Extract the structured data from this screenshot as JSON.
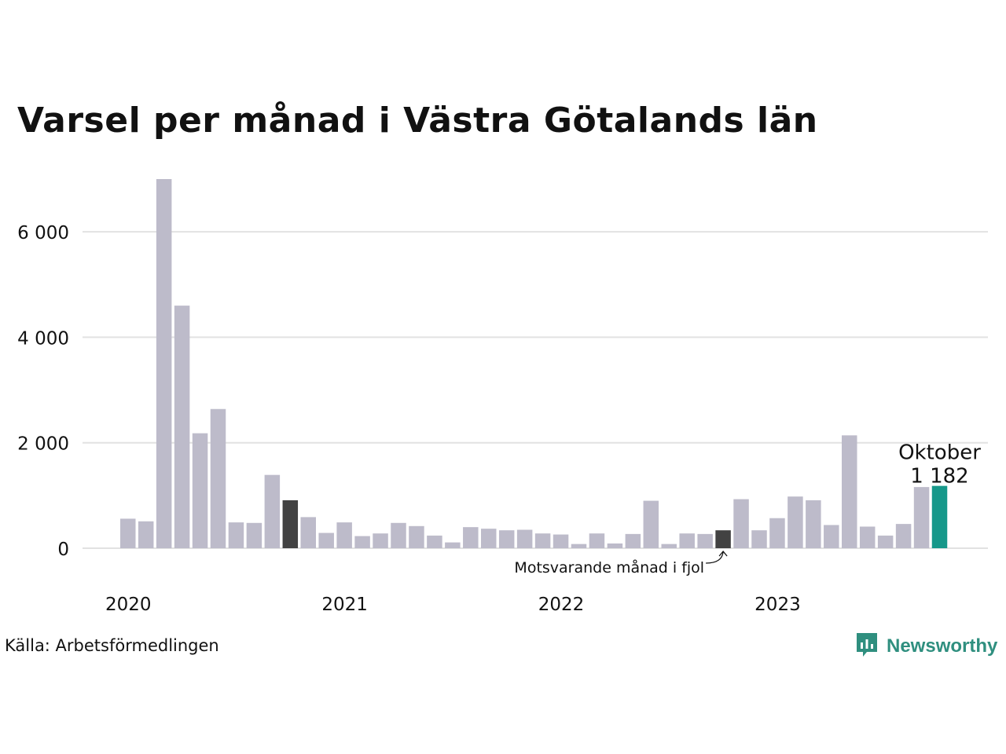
{
  "title": "Varsel per månad i Västra Götalands län",
  "source": "Källa: Arbetsförmedlingen",
  "brand": {
    "name": "Newsworthy",
    "icon": "newsworthy-logo-icon"
  },
  "colors": {
    "bar": "#bdbbca",
    "same_month_last_year": "#424242",
    "current": "#16988a",
    "grid": "#e2e2e2",
    "brand": "#2f8f7f"
  },
  "chart_data": {
    "type": "bar",
    "title": "Varsel per månad i Västra Götalands län",
    "xlabel": "",
    "ylabel": "",
    "ylim": [
      0,
      7000
    ],
    "yticks": [
      0,
      2000,
      4000,
      6000
    ],
    "ytick_labels": [
      "0",
      "2 000",
      "4 000",
      "6 000"
    ],
    "x_year_labels": [
      "2020",
      "2021",
      "2022",
      "2023"
    ],
    "year_start_index": [
      0,
      12,
      24,
      36
    ],
    "grid": true,
    "legend": "none",
    "values": [
      560,
      510,
      7000,
      4600,
      2180,
      2640,
      490,
      480,
      1390,
      910,
      590,
      290,
      490,
      230,
      280,
      480,
      420,
      240,
      110,
      400,
      370,
      340,
      350,
      280,
      260,
      80,
      280,
      90,
      270,
      900,
      80,
      280,
      270,
      340,
      930,
      340,
      570,
      980,
      910,
      440,
      2140,
      410,
      240,
      460,
      1160,
      1182
    ],
    "highlight": [
      {
        "index": 9,
        "role": "same_month_last_year"
      },
      {
        "index": 33,
        "role": "same_month_last_year"
      },
      {
        "index": 45,
        "role": "current"
      }
    ],
    "annotations": {
      "current_month": "Oktober",
      "current_value": "1 182",
      "last_year_label": "Motsvarande månad i fjol"
    }
  }
}
